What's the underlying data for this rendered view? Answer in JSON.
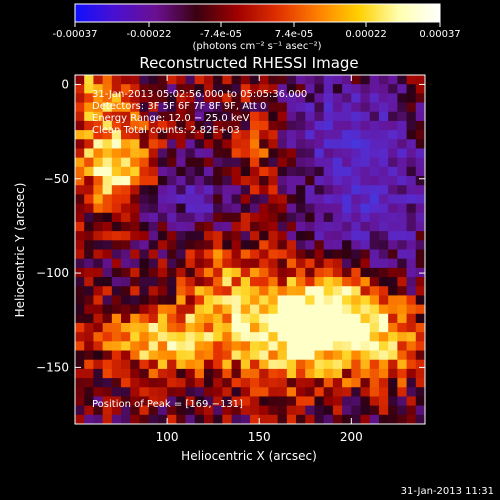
{
  "colorbar": {
    "tick_labels": [
      "-0.00037",
      "-0.00022",
      "-7.4e-05",
      "7.4e-05",
      "0.00022",
      "0.00037"
    ],
    "tick_values": [
      -0.00037,
      -0.00022,
      -7.4e-05,
      7.4e-05,
      0.00022,
      0.00037
    ],
    "range": [
      -0.00037,
      0.00037
    ],
    "units_label": "(photons cm⁻² s⁻¹ asec⁻²)",
    "gradient": [
      "#1010ff",
      "#4a10d0",
      "#6a1090",
      "#3a0010",
      "#a00000",
      "#e03000",
      "#ff8000",
      "#ffd000",
      "#ffffb0",
      "#ffffff"
    ]
  },
  "chart_data": {
    "type": "heatmap",
    "title": "Reconstructed RHESSI Image",
    "xlabel": "Heliocentric X (arcsec)",
    "ylabel": "Heliocentric Y (arcsec)",
    "xlim": [
      50,
      240
    ],
    "ylim": [
      -180,
      5
    ],
    "xticks": [
      100,
      150,
      200
    ],
    "yticks": [
      0,
      -50,
      -100,
      -150
    ],
    "xtick_labels": [
      "100",
      "150",
      "200"
    ],
    "ytick_labels": [
      "0",
      "−50",
      "−100",
      "−150"
    ],
    "annotations": [
      "31-Jan-2013 05:02:56.000 to 05:05:36.000",
      "Detectors: 3F 5F 6F 7F 8F 9F, Att 0",
      "Energy Range: 12.0 − 25.0 keV",
      "Clean  Total counts: 2.82E+03"
    ],
    "peak_label": "Position of Peak = [169,−131]",
    "peak": [
      169,
      -131
    ],
    "grid_cells": 38,
    "sources": [
      {
        "x": 169,
        "y": -131,
        "amp": 1.0,
        "sx": 30,
        "sy": 18
      },
      {
        "x": 72,
        "y": -42,
        "amp": 0.9,
        "sx": 14,
        "sy": 16
      },
      {
        "x": 95,
        "y": -135,
        "amp": 0.75,
        "sx": 22,
        "sy": 12
      },
      {
        "x": 195,
        "y": -118,
        "amp": 0.7,
        "sx": 20,
        "sy": 14
      },
      {
        "x": 60,
        "y": -5,
        "amp": 0.6,
        "sx": 12,
        "sy": 14
      },
      {
        "x": 130,
        "y": -100,
        "amp": 0.45,
        "sx": 16,
        "sy": 14
      },
      {
        "x": 150,
        "y": -40,
        "amp": 0.35,
        "sx": 12,
        "sy": 22
      },
      {
        "x": 220,
        "y": -140,
        "amp": 0.5,
        "sx": 14,
        "sy": 12
      },
      {
        "x": 210,
        "y": -55,
        "amp": -0.6,
        "sx": 25,
        "sy": 35
      },
      {
        "x": 115,
        "y": -60,
        "amp": -0.4,
        "sx": 20,
        "sy": 18
      },
      {
        "x": 185,
        "y": -20,
        "amp": -0.35,
        "sx": 20,
        "sy": 15
      }
    ]
  },
  "footer": {
    "timestamp": "31-Jan-2013 11:31"
  }
}
